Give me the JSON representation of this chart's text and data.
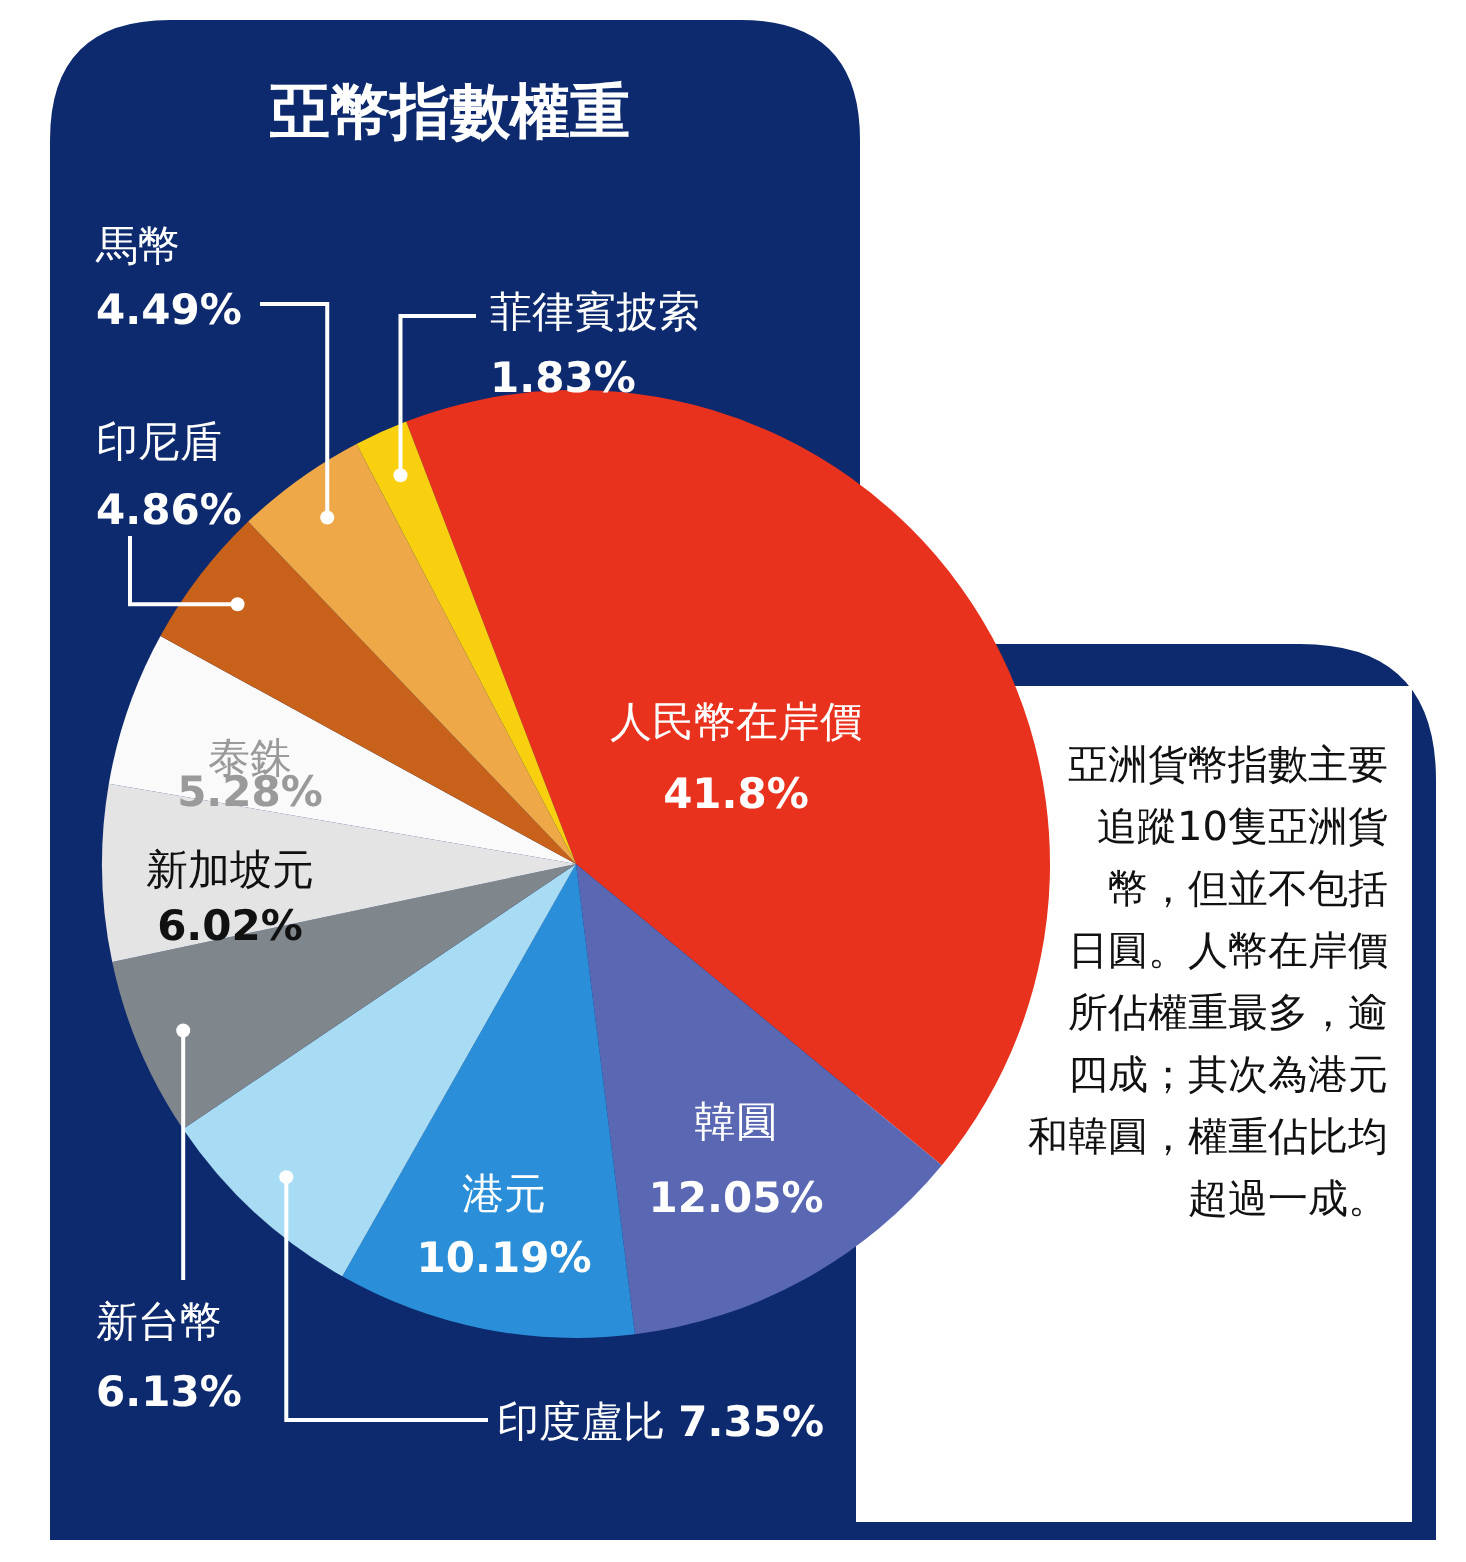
{
  "chart_data": {
    "type": "pie",
    "title": "亞幣指數權重",
    "categories": [
      "人民幣在岸價",
      "韓圓",
      "港元",
      "印度盧比",
      "新台幣",
      "新加坡元",
      "泰銖",
      "印尼盾",
      "馬幣",
      "菲律賓披索"
    ],
    "values": [
      41.8,
      12.05,
      10.19,
      7.35,
      6.13,
      6.02,
      5.28,
      4.86,
      4.49,
      1.83
    ],
    "colors": [
      "#e8321e",
      "#5a68b4",
      "#2a8fd8",
      "#a8dcf4",
      "#7f868c",
      "#e4e4e4",
      "#fafafa",
      "#c8621a",
      "#eea848",
      "#f8d010"
    ],
    "value_labels": [
      "41.8%",
      "12.05%",
      "10.19%",
      "7.35%",
      "6.13%",
      "6.02%",
      "5.28%",
      "4.86%",
      "4.49%",
      "1.83%"
    ],
    "annotations": [
      "亞洲貨幣指數主要追蹤10隻亞洲貨幣，但並不包括日圓。人幣在岸價所佔權重最多，逾四成；其次為港元和韓圓，權重佔比均超過一成。"
    ]
  }
}
